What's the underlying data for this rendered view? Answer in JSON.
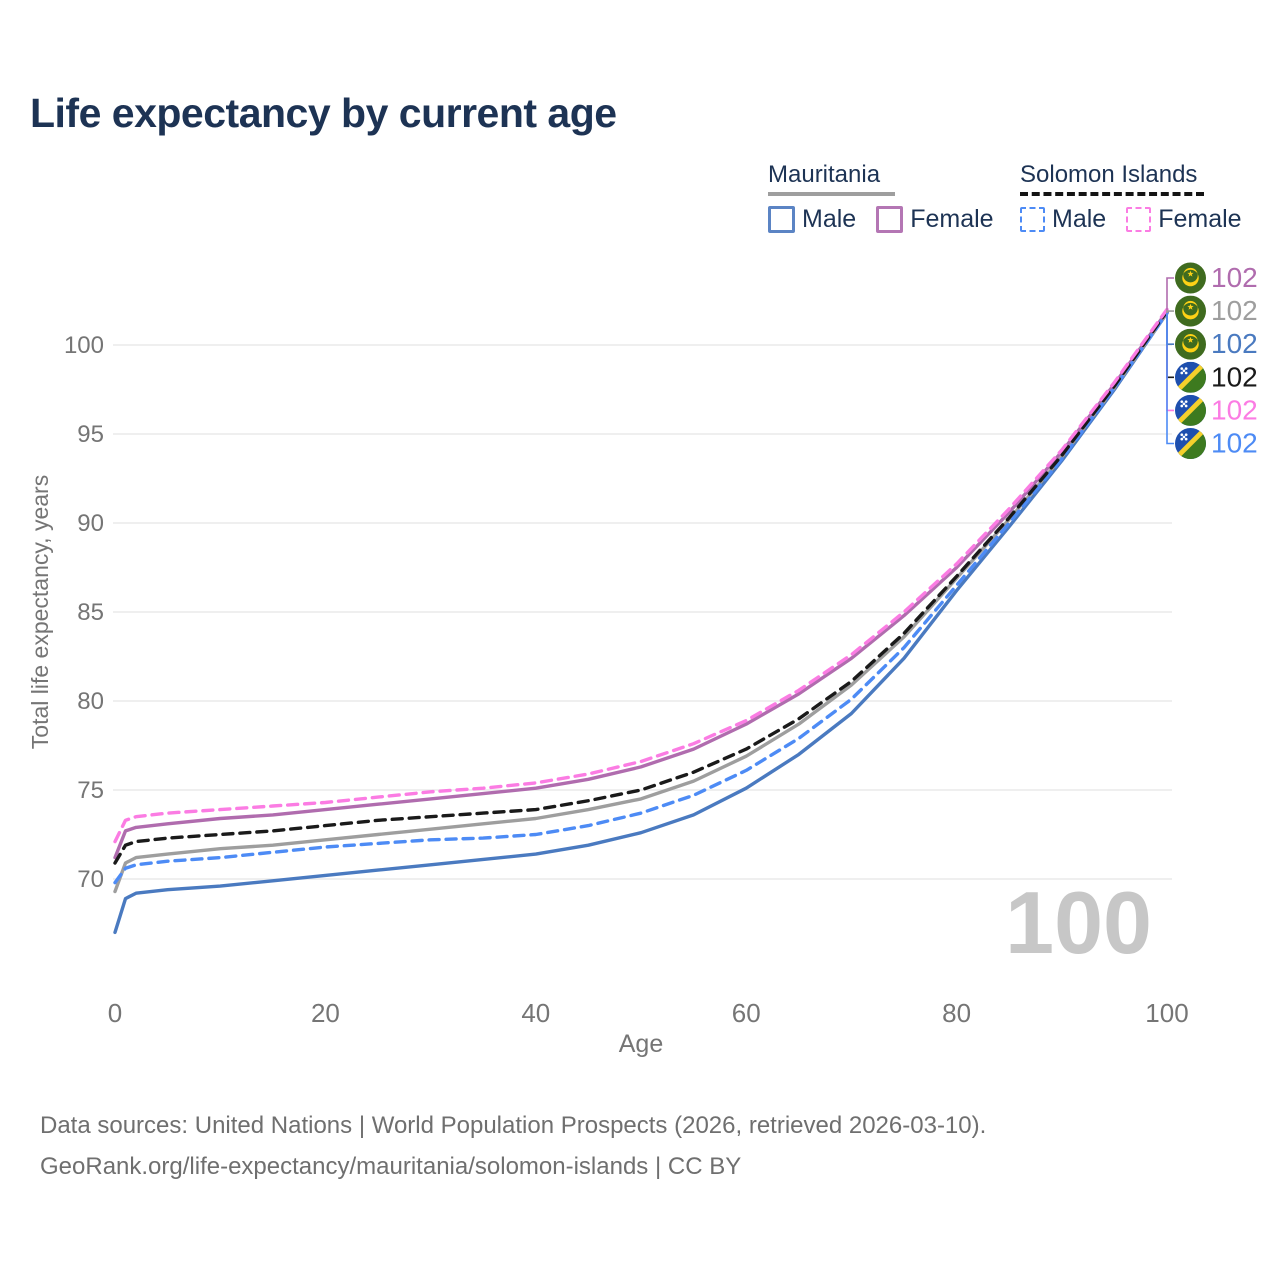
{
  "title": "Life expectancy by current age",
  "legend": {
    "groups": [
      {
        "name": "Mauritania",
        "style": "solid",
        "line_color": "#9e9e9e",
        "items": [
          {
            "label": "Male",
            "color": "#5b84c4"
          },
          {
            "label": "Female",
            "color": "#b476b4"
          }
        ]
      },
      {
        "name": "Solomon Islands",
        "style": "dashed",
        "line_color": "#141414",
        "items": [
          {
            "label": "Male",
            "color": "#4d8bf5"
          },
          {
            "label": "Female",
            "color": "#fb7ce3"
          }
        ]
      }
    ]
  },
  "age_counter": "100",
  "end_labels": [
    {
      "flag": "mauritania",
      "series_index": 2,
      "value": "102",
      "color": "#b06cae"
    },
    {
      "flag": "mauritania",
      "series_index": 1,
      "value": "102",
      "color": "#9e9e9e"
    },
    {
      "flag": "mauritania",
      "series_index": 0,
      "value": "102",
      "color": "#4a7ac0"
    },
    {
      "flag": "solomon-islands",
      "series_index": 4,
      "value": "102",
      "color": "#1a1a1a"
    },
    {
      "flag": "solomon-islands",
      "series_index": 5,
      "value": "102",
      "color": "#fb7ce3"
    },
    {
      "flag": "solomon-islands",
      "series_index": 3,
      "value": "102",
      "color": "#4d8bf5"
    }
  ],
  "chart_data": {
    "type": "line",
    "title": "Life expectancy by current age",
    "xlabel": "Age",
    "ylabel": "Total life expectancy, years",
    "x_ticks": [
      0,
      20,
      40,
      60,
      80,
      100
    ],
    "y_ticks": [
      70,
      75,
      80,
      85,
      90,
      95,
      100
    ],
    "xlim": [
      0,
      100
    ],
    "ylim": [
      66.5,
      102.5
    ],
    "grid": true,
    "legend_position": "top-right",
    "x": [
      0,
      1,
      2,
      5,
      10,
      15,
      20,
      25,
      30,
      35,
      40,
      45,
      50,
      55,
      60,
      65,
      70,
      75,
      80,
      85,
      90,
      95,
      100
    ],
    "series": [
      {
        "name": "Mauritania Male",
        "country": "Mauritania",
        "sex": "Male",
        "color": "#4a7ac0",
        "dash": "solid",
        "values": [
          67.0,
          68.9,
          69.2,
          69.4,
          69.6,
          69.9,
          70.2,
          70.5,
          70.8,
          71.1,
          71.4,
          71.9,
          72.6,
          73.6,
          75.1,
          77.0,
          79.3,
          82.4,
          86.2,
          89.8,
          93.5,
          97.5,
          101.8
        ]
      },
      {
        "name": "Mauritania Both sexes",
        "country": "Mauritania",
        "sex": "Both",
        "color": "#9e9e9e",
        "dash": "solid",
        "values": [
          69.3,
          70.9,
          71.2,
          71.4,
          71.7,
          71.9,
          72.2,
          72.5,
          72.8,
          73.1,
          73.4,
          73.9,
          74.5,
          75.5,
          76.9,
          78.7,
          80.9,
          83.6,
          86.9,
          90.2,
          93.7,
          97.6,
          101.8
        ]
      },
      {
        "name": "Mauritania Female",
        "country": "Mauritania",
        "sex": "Female",
        "color": "#b06cae",
        "dash": "solid",
        "values": [
          71.2,
          72.7,
          72.9,
          73.1,
          73.4,
          73.6,
          73.9,
          74.2,
          74.5,
          74.8,
          75.1,
          75.6,
          76.3,
          77.3,
          78.7,
          80.4,
          82.4,
          84.8,
          87.5,
          90.6,
          94.0,
          97.8,
          101.9
        ]
      },
      {
        "name": "Solomon Islands Male",
        "country": "Solomon Islands",
        "sex": "Male",
        "color": "#4d8bf5",
        "dash": "dashed",
        "values": [
          69.8,
          70.6,
          70.8,
          71.0,
          71.2,
          71.5,
          71.8,
          72.0,
          72.2,
          72.3,
          72.5,
          73.0,
          73.7,
          74.7,
          76.1,
          77.9,
          80.1,
          83.0,
          86.5,
          90.0,
          93.6,
          97.6,
          101.8
        ]
      },
      {
        "name": "Solomon Islands Both sexes",
        "country": "Solomon Islands",
        "sex": "Both",
        "color": "#1a1a1a",
        "dash": "dashed",
        "values": [
          70.9,
          71.9,
          72.1,
          72.3,
          72.5,
          72.7,
          73.0,
          73.3,
          73.5,
          73.7,
          73.9,
          74.4,
          75.0,
          76.0,
          77.3,
          79.0,
          81.1,
          83.8,
          87.0,
          90.3,
          93.8,
          97.7,
          101.9
        ]
      },
      {
        "name": "Solomon Islands Female",
        "country": "Solomon Islands",
        "sex": "Female",
        "color": "#fb7ce3",
        "dash": "dashed",
        "values": [
          72.1,
          73.3,
          73.5,
          73.7,
          73.9,
          74.1,
          74.3,
          74.6,
          74.9,
          75.1,
          75.4,
          75.9,
          76.6,
          77.6,
          78.9,
          80.6,
          82.6,
          85.0,
          87.7,
          90.8,
          94.1,
          97.9,
          102.0
        ]
      }
    ]
  },
  "footer": {
    "line1": "Data sources: United Nations | World Population Prospects (2026, retrieved 2026-03-10).",
    "line2": "GeoRank.org/life-expectancy/mauritania/solomon-islands | CC BY"
  }
}
